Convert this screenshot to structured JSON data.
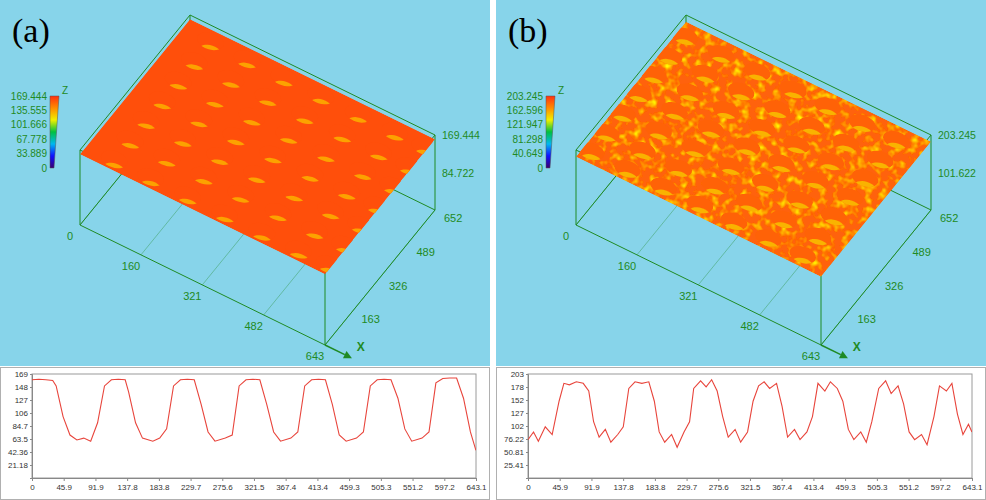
{
  "chart_data": [
    {
      "type": "surface",
      "title": "(a)",
      "x_label": "X",
      "z_label": "Z",
      "xlim": [
        0,
        643
      ],
      "xticks": [
        0,
        160,
        321,
        482,
        643
      ],
      "ylim": [
        0,
        652
      ],
      "yticks": [
        163,
        326,
        489,
        652
      ],
      "zlim": [
        0,
        169.444
      ],
      "zticks": [
        84.722,
        169.444
      ],
      "colorbar_ticks": [
        0,
        33.889,
        67.778,
        101.666,
        135.555,
        169.444
      ],
      "plateau_z": 160,
      "pit_z": 60,
      "pit_x": [
        72,
        168,
        265,
        362,
        460,
        556,
        635
      ],
      "pit_y": [
        40,
        135,
        230,
        325,
        420,
        515,
        610
      ]
    },
    {
      "type": "line",
      "color": "#e8453c",
      "x": [
        0,
        10,
        20,
        30,
        35,
        45,
        55,
        65,
        75,
        85,
        95,
        105,
        115,
        125,
        135,
        140,
        150,
        160,
        175,
        185,
        195,
        205,
        215,
        225,
        235,
        245,
        255,
        265,
        280,
        290,
        300,
        310,
        320,
        330,
        340,
        350,
        360,
        375,
        385,
        395,
        405,
        415,
        425,
        435,
        445,
        455,
        470,
        480,
        490,
        500,
        510,
        520,
        530,
        540,
        550,
        565,
        575,
        585,
        595,
        605,
        615,
        625,
        635,
        643
      ],
      "values": [
        160,
        161,
        160,
        159,
        150,
        100,
        70,
        62,
        65,
        60,
        90,
        150,
        160,
        161,
        160,
        140,
        90,
        65,
        60,
        65,
        80,
        150,
        160,
        161,
        160,
        120,
        75,
        60,
        65,
        70,
        150,
        160,
        161,
        160,
        120,
        75,
        60,
        65,
        75,
        150,
        160,
        161,
        160,
        120,
        70,
        60,
        65,
        75,
        150,
        160,
        161,
        160,
        130,
        80,
        60,
        65,
        75,
        155,
        162,
        163,
        163,
        130,
        75,
        45
      ],
      "xlim": [
        0,
        643.1
      ],
      "xticks": [
        0,
        45.9,
        91.9,
        137.8,
        183.8,
        229.7,
        275.6,
        321.5,
        367.4,
        413.4,
        459.3,
        505.3,
        551.2,
        597.2,
        643.1
      ],
      "ylim": [
        0,
        169.44
      ],
      "yticks": [
        {
          "value": 169.44,
          "label": "169"
        },
        {
          "value": 148.26,
          "label": "148"
        },
        {
          "value": 127.08,
          "label": "127"
        },
        {
          "value": 105.9,
          "label": "106"
        },
        {
          "value": 84.72,
          "label": "84.7"
        },
        {
          "value": 63.54,
          "label": "63.5"
        },
        42.36,
        21.18
      ]
    },
    {
      "type": "surface",
      "title": "(b)",
      "x_label": "X",
      "z_label": "Z",
      "xlim": [
        0,
        643
      ],
      "xticks": [
        0,
        160,
        321,
        482,
        643
      ],
      "ylim": [
        0,
        652
      ],
      "yticks": [
        163,
        326,
        489,
        652
      ],
      "zlim": [
        0,
        203.245
      ],
      "zticks": [
        101.622,
        203.245
      ],
      "colorbar_ticks": [
        0,
        40.649,
        81.298,
        121.947,
        162.596,
        203.245
      ],
      "plateau_z": 185,
      "pit_z": 70,
      "pit_x": [
        20,
        115,
        210,
        305,
        395,
        485,
        575
      ],
      "pit_y": [
        45,
        135,
        230,
        325,
        415,
        505,
        600
      ]
    },
    {
      "type": "line",
      "color": "#e8453c",
      "x": [
        0,
        8,
        15,
        25,
        35,
        45,
        52,
        60,
        70,
        80,
        88,
        95,
        103,
        112,
        120,
        130,
        138,
        146,
        155,
        165,
        175,
        183,
        190,
        198,
        208,
        216,
        226,
        234,
        240,
        250,
        258,
        266,
        274,
        282,
        290,
        300,
        308,
        318,
        326,
        334,
        342,
        350,
        360,
        368,
        376,
        386,
        394,
        404,
        412,
        420,
        430,
        438,
        448,
        456,
        464,
        472,
        482,
        490,
        498,
        508,
        518,
        526,
        536,
        544,
        552,
        560,
        570,
        578,
        588,
        596,
        606,
        614,
        622,
        630,
        638,
        643
      ],
      "values": [
        75,
        90,
        72,
        100,
        85,
        150,
        185,
        182,
        188,
        185,
        170,
        110,
        80,
        95,
        70,
        85,
        100,
        175,
        188,
        185,
        188,
        150,
        90,
        70,
        85,
        60,
        90,
        110,
        175,
        190,
        178,
        192,
        170,
        120,
        80,
        95,
        70,
        90,
        150,
        180,
        188,
        175,
        185,
        140,
        80,
        95,
        75,
        90,
        120,
        185,
        170,
        188,
        175,
        150,
        95,
        75,
        90,
        70,
        110,
        175,
        190,
        165,
        180,
        145,
        90,
        75,
        85,
        65,
        120,
        180,
        170,
        185,
        125,
        85,
        105,
        90
      ],
      "xlim": [
        0,
        643.1
      ],
      "xticks": [
        0,
        45.9,
        91.9,
        137.8,
        183.8,
        229.7,
        275.6,
        321.5,
        367.4,
        413.4,
        459.3,
        505.3,
        551.2,
        597.2,
        643.1
      ],
      "ylim": [
        0,
        203.24
      ],
      "yticks": [
        {
          "value": 203.24,
          "label": "203"
        },
        {
          "value": 177.84,
          "label": "178"
        },
        {
          "value": 152.43,
          "label": "152"
        },
        {
          "value": 127.03,
          "label": "127"
        },
        {
          "value": 101.62,
          "label": "102"
        },
        76.22,
        50.81,
        25.41
      ]
    }
  ]
}
